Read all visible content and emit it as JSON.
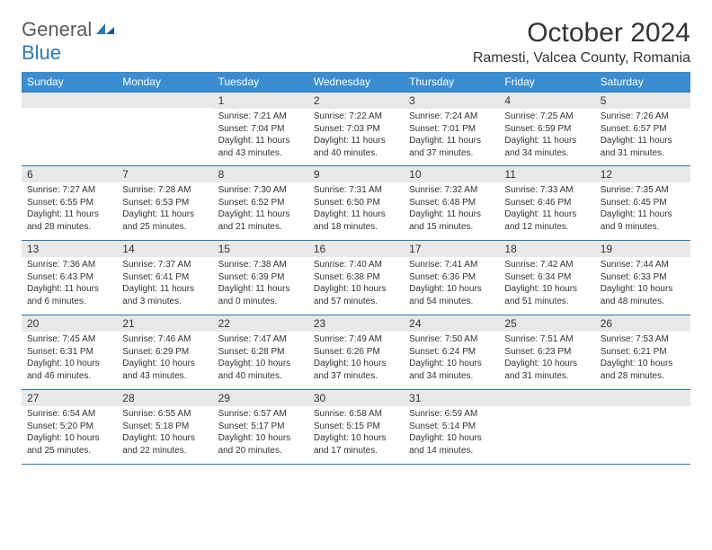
{
  "logo": {
    "text_general": "General",
    "text_blue": "Blue"
  },
  "title": "October 2024",
  "location": "Ramesti, Valcea County, Romania",
  "colors": {
    "header_bg": "#3a8dd0",
    "border": "#2a7ab9",
    "number_bg": "#e8e8e8",
    "text": "#333333",
    "logo_gray": "#5a5a5a",
    "logo_blue": "#2a7ab9"
  },
  "day_names": [
    "Sunday",
    "Monday",
    "Tuesday",
    "Wednesday",
    "Thursday",
    "Friday",
    "Saturday"
  ],
  "weeks": [
    [
      {
        "empty": true
      },
      {
        "empty": true
      },
      {
        "num": "1",
        "sunrise": "Sunrise: 7:21 AM",
        "sunset": "Sunset: 7:04 PM",
        "daylight": "Daylight: 11 hours and 43 minutes."
      },
      {
        "num": "2",
        "sunrise": "Sunrise: 7:22 AM",
        "sunset": "Sunset: 7:03 PM",
        "daylight": "Daylight: 11 hours and 40 minutes."
      },
      {
        "num": "3",
        "sunrise": "Sunrise: 7:24 AM",
        "sunset": "Sunset: 7:01 PM",
        "daylight": "Daylight: 11 hours and 37 minutes."
      },
      {
        "num": "4",
        "sunrise": "Sunrise: 7:25 AM",
        "sunset": "Sunset: 6:59 PM",
        "daylight": "Daylight: 11 hours and 34 minutes."
      },
      {
        "num": "5",
        "sunrise": "Sunrise: 7:26 AM",
        "sunset": "Sunset: 6:57 PM",
        "daylight": "Daylight: 11 hours and 31 minutes."
      }
    ],
    [
      {
        "num": "6",
        "sunrise": "Sunrise: 7:27 AM",
        "sunset": "Sunset: 6:55 PM",
        "daylight": "Daylight: 11 hours and 28 minutes."
      },
      {
        "num": "7",
        "sunrise": "Sunrise: 7:28 AM",
        "sunset": "Sunset: 6:53 PM",
        "daylight": "Daylight: 11 hours and 25 minutes."
      },
      {
        "num": "8",
        "sunrise": "Sunrise: 7:30 AM",
        "sunset": "Sunset: 6:52 PM",
        "daylight": "Daylight: 11 hours and 21 minutes."
      },
      {
        "num": "9",
        "sunrise": "Sunrise: 7:31 AM",
        "sunset": "Sunset: 6:50 PM",
        "daylight": "Daylight: 11 hours and 18 minutes."
      },
      {
        "num": "10",
        "sunrise": "Sunrise: 7:32 AM",
        "sunset": "Sunset: 6:48 PM",
        "daylight": "Daylight: 11 hours and 15 minutes."
      },
      {
        "num": "11",
        "sunrise": "Sunrise: 7:33 AM",
        "sunset": "Sunset: 6:46 PM",
        "daylight": "Daylight: 11 hours and 12 minutes."
      },
      {
        "num": "12",
        "sunrise": "Sunrise: 7:35 AM",
        "sunset": "Sunset: 6:45 PM",
        "daylight": "Daylight: 11 hours and 9 minutes."
      }
    ],
    [
      {
        "num": "13",
        "sunrise": "Sunrise: 7:36 AM",
        "sunset": "Sunset: 6:43 PM",
        "daylight": "Daylight: 11 hours and 6 minutes."
      },
      {
        "num": "14",
        "sunrise": "Sunrise: 7:37 AM",
        "sunset": "Sunset: 6:41 PM",
        "daylight": "Daylight: 11 hours and 3 minutes."
      },
      {
        "num": "15",
        "sunrise": "Sunrise: 7:38 AM",
        "sunset": "Sunset: 6:39 PM",
        "daylight": "Daylight: 11 hours and 0 minutes."
      },
      {
        "num": "16",
        "sunrise": "Sunrise: 7:40 AM",
        "sunset": "Sunset: 6:38 PM",
        "daylight": "Daylight: 10 hours and 57 minutes."
      },
      {
        "num": "17",
        "sunrise": "Sunrise: 7:41 AM",
        "sunset": "Sunset: 6:36 PM",
        "daylight": "Daylight: 10 hours and 54 minutes."
      },
      {
        "num": "18",
        "sunrise": "Sunrise: 7:42 AM",
        "sunset": "Sunset: 6:34 PM",
        "daylight": "Daylight: 10 hours and 51 minutes."
      },
      {
        "num": "19",
        "sunrise": "Sunrise: 7:44 AM",
        "sunset": "Sunset: 6:33 PM",
        "daylight": "Daylight: 10 hours and 48 minutes."
      }
    ],
    [
      {
        "num": "20",
        "sunrise": "Sunrise: 7:45 AM",
        "sunset": "Sunset: 6:31 PM",
        "daylight": "Daylight: 10 hours and 46 minutes."
      },
      {
        "num": "21",
        "sunrise": "Sunrise: 7:46 AM",
        "sunset": "Sunset: 6:29 PM",
        "daylight": "Daylight: 10 hours and 43 minutes."
      },
      {
        "num": "22",
        "sunrise": "Sunrise: 7:47 AM",
        "sunset": "Sunset: 6:28 PM",
        "daylight": "Daylight: 10 hours and 40 minutes."
      },
      {
        "num": "23",
        "sunrise": "Sunrise: 7:49 AM",
        "sunset": "Sunset: 6:26 PM",
        "daylight": "Daylight: 10 hours and 37 minutes."
      },
      {
        "num": "24",
        "sunrise": "Sunrise: 7:50 AM",
        "sunset": "Sunset: 6:24 PM",
        "daylight": "Daylight: 10 hours and 34 minutes."
      },
      {
        "num": "25",
        "sunrise": "Sunrise: 7:51 AM",
        "sunset": "Sunset: 6:23 PM",
        "daylight": "Daylight: 10 hours and 31 minutes."
      },
      {
        "num": "26",
        "sunrise": "Sunrise: 7:53 AM",
        "sunset": "Sunset: 6:21 PM",
        "daylight": "Daylight: 10 hours and 28 minutes."
      }
    ],
    [
      {
        "num": "27",
        "sunrise": "Sunrise: 6:54 AM",
        "sunset": "Sunset: 5:20 PM",
        "daylight": "Daylight: 10 hours and 25 minutes."
      },
      {
        "num": "28",
        "sunrise": "Sunrise: 6:55 AM",
        "sunset": "Sunset: 5:18 PM",
        "daylight": "Daylight: 10 hours and 22 minutes."
      },
      {
        "num": "29",
        "sunrise": "Sunrise: 6:57 AM",
        "sunset": "Sunset: 5:17 PM",
        "daylight": "Daylight: 10 hours and 20 minutes."
      },
      {
        "num": "30",
        "sunrise": "Sunrise: 6:58 AM",
        "sunset": "Sunset: 5:15 PM",
        "daylight": "Daylight: 10 hours and 17 minutes."
      },
      {
        "num": "31",
        "sunrise": "Sunrise: 6:59 AM",
        "sunset": "Sunset: 5:14 PM",
        "daylight": "Daylight: 10 hours and 14 minutes."
      },
      {
        "empty": true
      },
      {
        "empty": true
      }
    ]
  ]
}
